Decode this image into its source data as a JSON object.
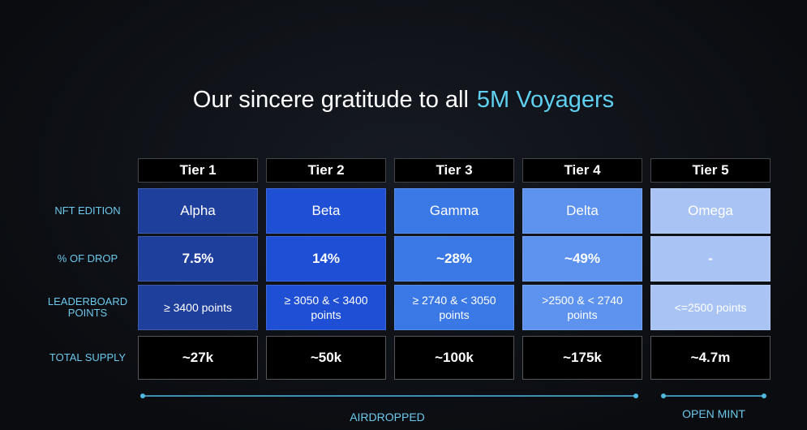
{
  "header": {
    "title": "Our sincere gratitude to all",
    "highlight": "5M Voyagers"
  },
  "table": {
    "columns": [
      "Tier 1",
      "Tier 2",
      "Tier 3",
      "Tier 4",
      "Tier 5"
    ],
    "rows": [
      {
        "label": "NFT EDITION",
        "cells": [
          "Alpha",
          "Beta",
          "Gamma",
          "Delta",
          "Omega"
        ]
      },
      {
        "label": "% OF DROP",
        "cells": [
          "7.5%",
          "14%",
          "~28%",
          "~49%",
          "-"
        ]
      },
      {
        "label": "LEADERBOARD POINTS",
        "cells": [
          "≥ 3400 points",
          "≥ 3050 & < 3400 points",
          "≥ 2740 & < 3050 points",
          ">2500 & < 2740 points",
          "<=2500 points"
        ]
      },
      {
        "label": "TOTAL SUPPLY",
        "cells": [
          "~27k",
          "~50k",
          "~100k",
          "~175k",
          "~4.7m"
        ]
      }
    ]
  },
  "footer": {
    "airdropped": "AIRDROPPED",
    "open_mint": "OPEN MINT"
  }
}
